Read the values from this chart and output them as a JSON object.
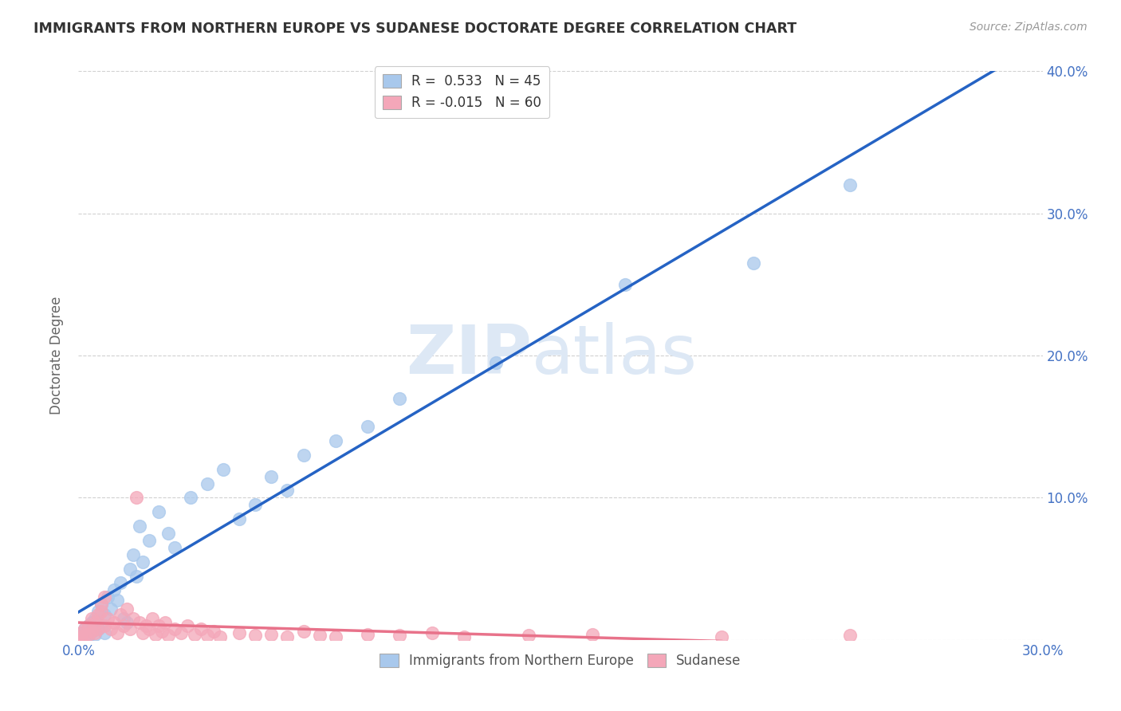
{
  "title": "IMMIGRANTS FROM NORTHERN EUROPE VS SUDANESE DOCTORATE DEGREE CORRELATION CHART",
  "source": "Source: ZipAtlas.com",
  "ylabel": "Doctorate Degree",
  "xlim": [
    0,
    0.3
  ],
  "ylim": [
    0,
    0.4
  ],
  "blue_R": 0.533,
  "blue_N": 45,
  "pink_R": -0.015,
  "pink_N": 60,
  "blue_color": "#A8C8EC",
  "pink_color": "#F4A7B9",
  "blue_line_color": "#2563C4",
  "pink_line_color": "#E8728A",
  "watermark_zip": "ZIP",
  "watermark_atlas": "atlas",
  "background_color": "#FFFFFF",
  "grid_color": "#CCCCCC",
  "blue_scatter_x": [
    0.001,
    0.002,
    0.003,
    0.003,
    0.004,
    0.004,
    0.005,
    0.005,
    0.006,
    0.006,
    0.007,
    0.007,
    0.008,
    0.008,
    0.009,
    0.01,
    0.011,
    0.012,
    0.013,
    0.014,
    0.015,
    0.016,
    0.017,
    0.018,
    0.019,
    0.02,
    0.022,
    0.025,
    0.028,
    0.03,
    0.035,
    0.04,
    0.045,
    0.05,
    0.055,
    0.06,
    0.065,
    0.07,
    0.08,
    0.09,
    0.1,
    0.13,
    0.17,
    0.21,
    0.24
  ],
  "blue_scatter_y": [
    0.005,
    0.008,
    0.003,
    0.01,
    0.006,
    0.012,
    0.004,
    0.015,
    0.008,
    0.02,
    0.01,
    0.025,
    0.005,
    0.018,
    0.03,
    0.022,
    0.035,
    0.028,
    0.04,
    0.015,
    0.012,
    0.05,
    0.06,
    0.045,
    0.08,
    0.055,
    0.07,
    0.09,
    0.075,
    0.065,
    0.1,
    0.11,
    0.12,
    0.085,
    0.095,
    0.115,
    0.105,
    0.13,
    0.14,
    0.15,
    0.17,
    0.195,
    0.25,
    0.265,
    0.32
  ],
  "pink_scatter_x": [
    0.0005,
    0.001,
    0.001,
    0.002,
    0.002,
    0.003,
    0.003,
    0.004,
    0.004,
    0.005,
    0.005,
    0.006,
    0.006,
    0.007,
    0.007,
    0.008,
    0.008,
    0.009,
    0.01,
    0.011,
    0.012,
    0.013,
    0.014,
    0.015,
    0.016,
    0.017,
    0.018,
    0.019,
    0.02,
    0.021,
    0.022,
    0.023,
    0.024,
    0.025,
    0.026,
    0.027,
    0.028,
    0.03,
    0.032,
    0.034,
    0.036,
    0.038,
    0.04,
    0.042,
    0.044,
    0.05,
    0.055,
    0.06,
    0.065,
    0.07,
    0.075,
    0.08,
    0.09,
    0.1,
    0.11,
    0.12,
    0.14,
    0.16,
    0.2,
    0.24
  ],
  "pink_scatter_y": [
    0.001,
    0.002,
    0.005,
    0.003,
    0.008,
    0.004,
    0.01,
    0.006,
    0.015,
    0.005,
    0.012,
    0.008,
    0.018,
    0.02,
    0.025,
    0.01,
    0.03,
    0.015,
    0.008,
    0.012,
    0.005,
    0.018,
    0.01,
    0.022,
    0.008,
    0.015,
    0.1,
    0.012,
    0.005,
    0.01,
    0.008,
    0.015,
    0.004,
    0.01,
    0.006,
    0.012,
    0.003,
    0.008,
    0.005,
    0.01,
    0.004,
    0.008,
    0.003,
    0.006,
    0.002,
    0.005,
    0.003,
    0.004,
    0.002,
    0.006,
    0.003,
    0.002,
    0.004,
    0.003,
    0.005,
    0.002,
    0.003,
    0.004,
    0.002,
    0.003
  ]
}
